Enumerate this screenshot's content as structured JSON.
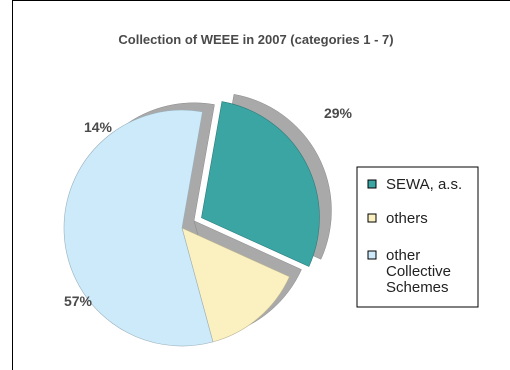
{
  "chart_data": {
    "type": "pie",
    "title": "Collection of WEEE in 2007 (categories 1 - 7)",
    "categories": [
      "SEWA, a.s.",
      "others",
      "other Collective Schemes"
    ],
    "values": [
      29,
      14,
      57
    ],
    "labels": [
      "29%",
      "14%",
      "57%"
    ],
    "exploded": [
      true,
      false,
      false
    ],
    "colors": [
      "#3aa5a3",
      "#faf0c0",
      "#cdeafa"
    ],
    "legend": {
      "placement": "right",
      "entries": [
        {
          "lines": [
            "SEWA, a.s."
          ],
          "color": "#3aa5a3"
        },
        {
          "lines": [
            "others"
          ],
          "color": "#faf0c0"
        },
        {
          "lines": [
            "other",
            "Collective",
            "Schemes"
          ],
          "color": "#cdeafa"
        }
      ]
    }
  }
}
